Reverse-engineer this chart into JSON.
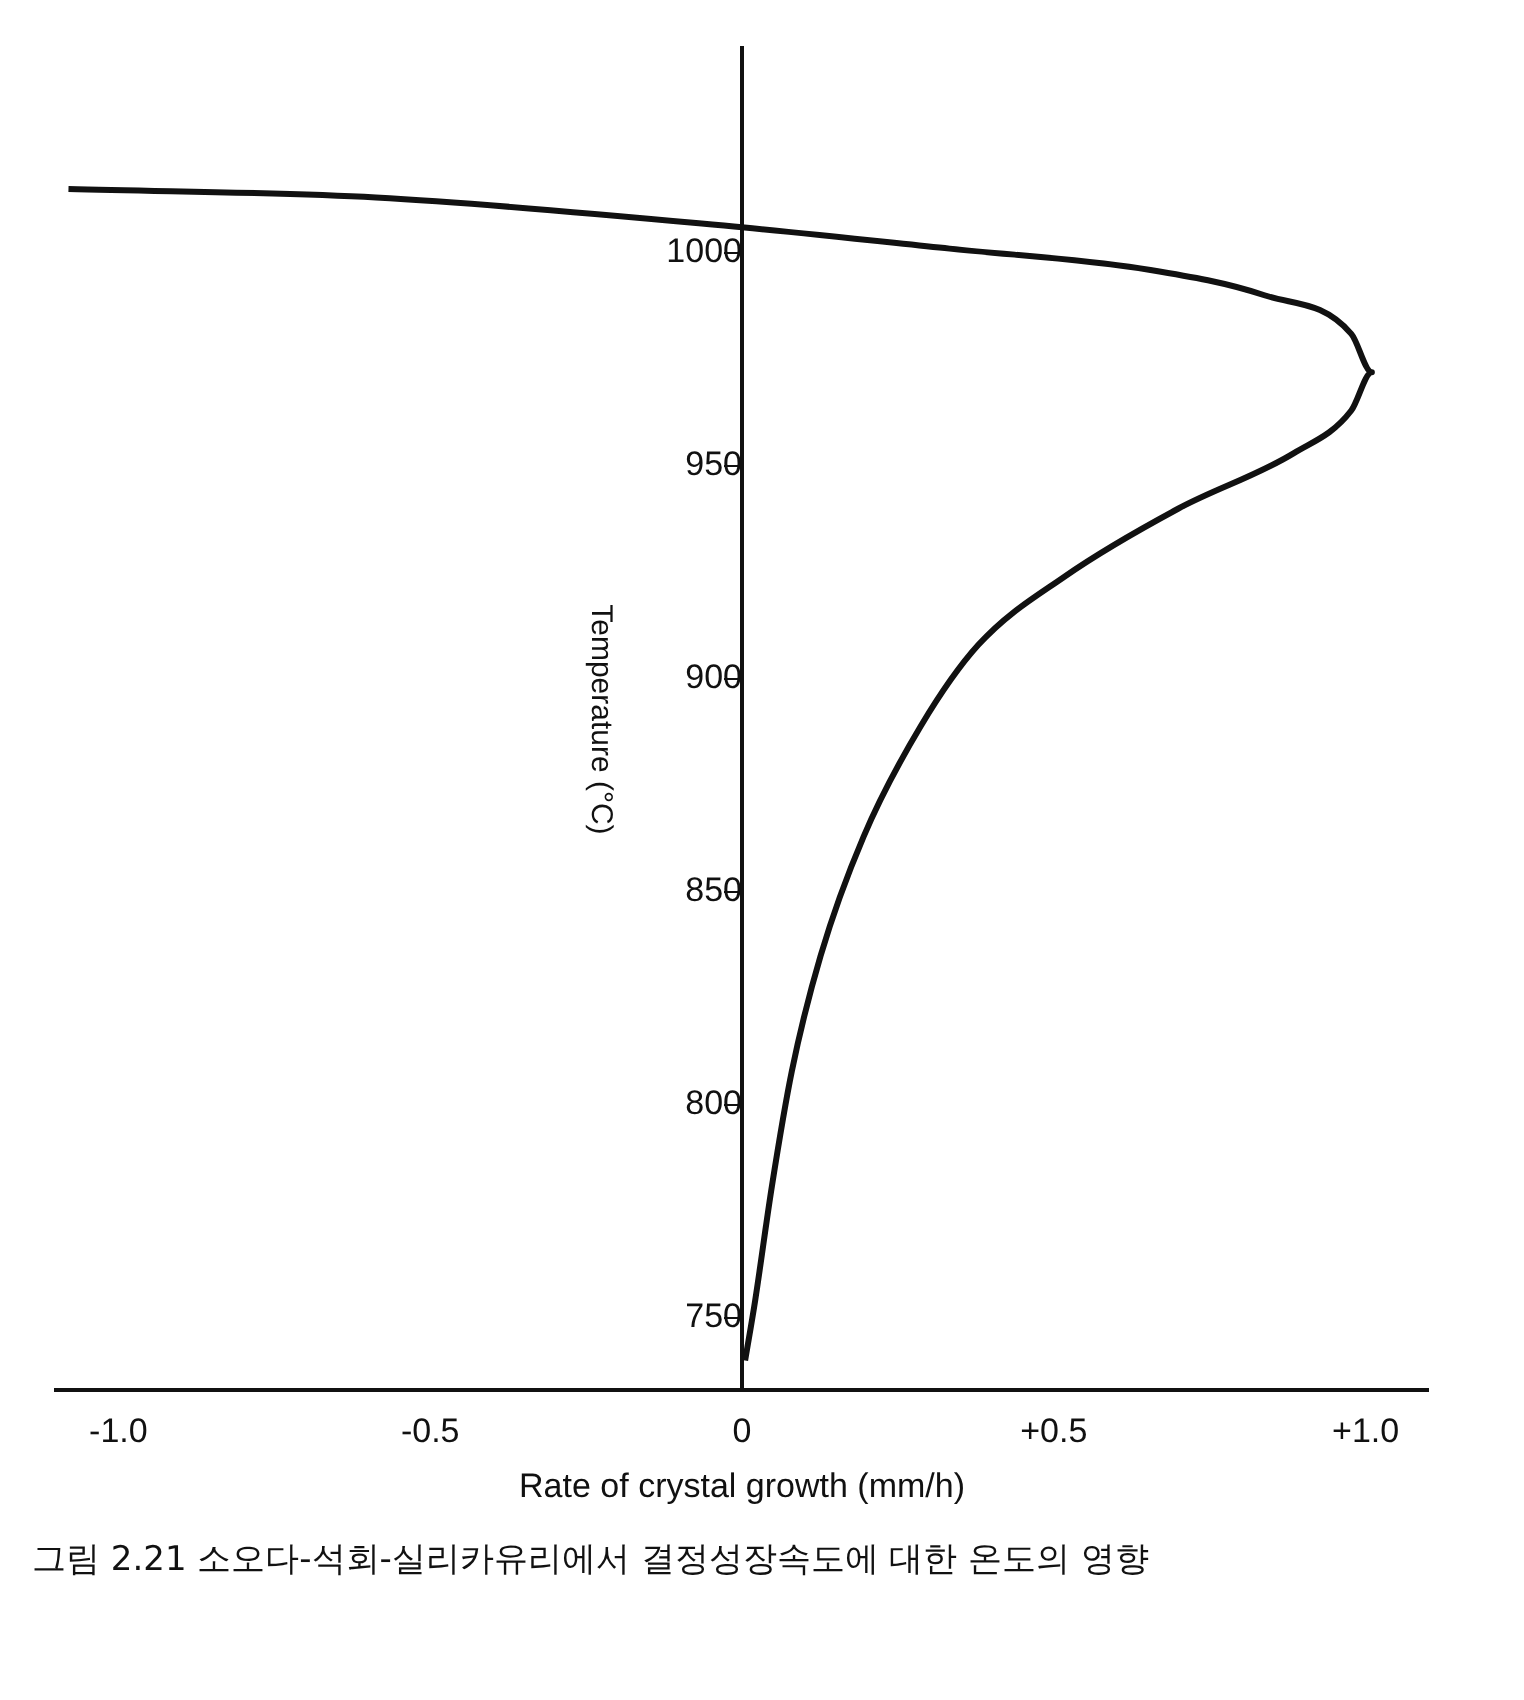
{
  "chart_data": {
    "type": "line",
    "xlabel": "Rate of crystal growth (mm/h)",
    "ylabel": "Temperature (°C)",
    "xlim": [
      -1.1,
      1.1
    ],
    "ylim": [
      733,
      1048
    ],
    "xticks": [
      {
        "value": -1,
        "label": "-1.0"
      },
      {
        "value": -0.5,
        "label": "-0.5"
      },
      0,
      {
        "value": 0.5,
        "label": "+0.5"
      },
      {
        "value": 1,
        "label": "+1.0"
      }
    ],
    "yticks": [
      750,
      800,
      850,
      900,
      950,
      1000
    ],
    "grid": false,
    "legend": false,
    "marker": "none",
    "line_style": "solid",
    "series": [
      {
        "color": "#111111",
        "x": [
          -1.08,
          -0.587,
          0,
          0.333,
          0.655,
          0.839,
          0.977,
          1.01,
          0.977,
          0.885,
          0.7,
          0.517,
          0.379,
          0.287,
          0.195,
          0.126,
          0.08,
          0.048,
          0.021,
          0.005
        ],
        "values": [
          1015,
          1013,
          1006,
          1001,
          996,
          990,
          981,
          972,
          963,
          953,
          940,
          924,
          908,
          889,
          863,
          835,
          808,
          781,
          754,
          740
        ]
      }
    ],
    "annotations": [
      "그림 2.21  소오다-석회-실리카유리에서 결정성장속도에 대한 온도의 영향"
    ]
  }
}
